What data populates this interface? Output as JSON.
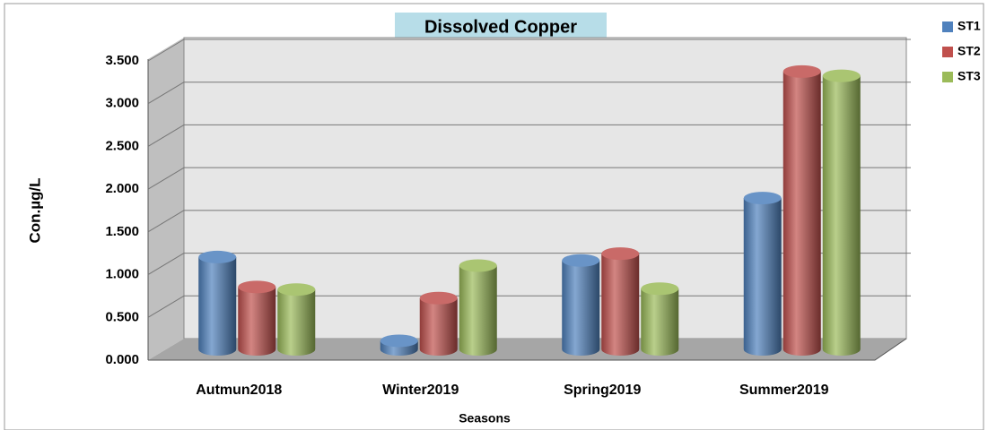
{
  "chart_data": {
    "type": "bar3d",
    "title": "Dissolved Copper",
    "xlabel": "Seasons",
    "ylabel": "Con.µg/L",
    "categories": [
      "Autmun2018",
      "Winter2019",
      "Spring2019",
      "Summer2019"
    ],
    "series": [
      {
        "name": "ST1",
        "color": "#4f81bd",
        "values": [
          1.08,
          0.1,
          1.04,
          1.77
        ]
      },
      {
        "name": "ST2",
        "color": "#c0504d",
        "values": [
          0.73,
          0.6,
          1.12,
          3.25
        ]
      },
      {
        "name": "ST3",
        "color": "#9bbb59",
        "values": [
          0.7,
          0.98,
          0.71,
          3.2
        ]
      }
    ],
    "ylim": [
      0,
      3.5
    ],
    "yticks": [
      {
        "value": 0,
        "label": "0.000"
      },
      {
        "value": 0.5,
        "label": "0.500"
      },
      {
        "value": 1,
        "label": "1.000"
      },
      {
        "value": 1.5,
        "label": "1.500"
      },
      {
        "value": 2,
        "label": "2.000"
      },
      {
        "value": 2.5,
        "label": "2.500"
      },
      {
        "value": 3,
        "label": "3.000"
      },
      {
        "value": 3.5,
        "label": "3.500"
      }
    ],
    "grid": true,
    "legend_position": "top-right"
  }
}
